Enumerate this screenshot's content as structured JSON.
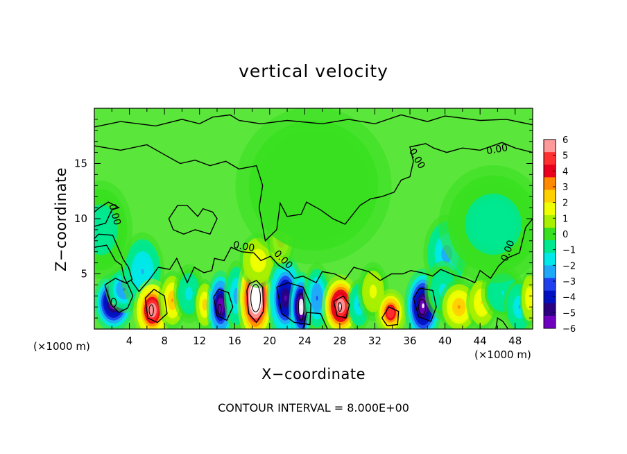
{
  "chart_data": {
    "type": "heatmap",
    "title": "vertical velocity",
    "xlabel": "X−coordinate",
    "ylabel": "Z−coordinate",
    "x_unit_left": "(×1000 m)",
    "x_unit_right": "(×1000 m)",
    "footer": "CONTOUR INTERVAL = 8.000E+00",
    "xlim": [
      0,
      50
    ],
    "ylim": [
      0,
      20
    ],
    "x_ticks": [
      4,
      8,
      12,
      16,
      20,
      24,
      28,
      32,
      36,
      40,
      44,
      48
    ],
    "x_tick_labels": [
      "4",
      "8",
      "12",
      "16",
      "20",
      "24",
      "28",
      "32",
      "36",
      "40",
      "44",
      "48"
    ],
    "y_ticks": [
      5,
      10,
      15
    ],
    "y_tick_labels": [
      "5",
      "10",
      "15"
    ],
    "colorbar": {
      "min": -6,
      "max": 6,
      "ticks": [
        "6",
        "5",
        "4",
        "3",
        "2",
        "1",
        "0",
        "−1",
        "−2",
        "−3",
        "−4",
        "−5",
        "−6"
      ],
      "colors": [
        "#ff9a9a",
        "#ff3030",
        "#e8001c",
        "#ff8a00",
        "#ffd000",
        "#f0ff00",
        "#a8f000",
        "#38e020",
        "#00e890",
        "#00e8e8",
        "#20a8f8",
        "#2040f0",
        "#0010c0",
        "#2a0080",
        "#7000c0"
      ]
    },
    "background_color": "#5ae63a",
    "features": [
      {
        "x": 2.2,
        "z": 2.4,
        "amp": -6.5,
        "sx": 1.3,
        "sz": 1.5
      },
      {
        "x": 3.4,
        "z": 3.6,
        "amp": -3.0,
        "sx": 1.2,
        "sz": 1.2
      },
      {
        "x": 5.5,
        "z": 5.2,
        "amp": -2.2,
        "sx": 1.4,
        "sz": 2.0
      },
      {
        "x": 6.6,
        "z": 1.7,
        "amp": 6.0,
        "sx": 1.2,
        "sz": 1.6
      },
      {
        "x": 8.9,
        "z": 2.6,
        "amp": 3.0,
        "sx": 0.9,
        "sz": 1.5
      },
      {
        "x": 10.8,
        "z": 3.2,
        "amp": -1.5,
        "sx": 1.0,
        "sz": 1.5
      },
      {
        "x": 12.6,
        "z": 2.2,
        "amp": 2.5,
        "sx": 0.7,
        "sz": 1.3
      },
      {
        "x": 14.4,
        "z": 2.1,
        "amp": -6.0,
        "sx": 0.9,
        "sz": 1.8
      },
      {
        "x": 16.2,
        "z": 3.0,
        "amp": -2.5,
        "sx": 0.8,
        "sz": 1.8
      },
      {
        "x": 18.4,
        "z": 2.8,
        "amp": 8.0,
        "sx": 1.2,
        "sz": 2.4
      },
      {
        "x": 18.7,
        "z": 6.2,
        "amp": 1.8,
        "sx": 1.2,
        "sz": 1.4
      },
      {
        "x": 21.8,
        "z": 2.8,
        "amp": -5.5,
        "sx": 1.2,
        "sz": 2.2
      },
      {
        "x": 23.6,
        "z": 2.0,
        "amp": -7.0,
        "sx": 0.8,
        "sz": 1.8
      },
      {
        "x": 21.3,
        "z": 8.3,
        "amp": 3.0,
        "sx": 0.9,
        "sz": 1.6
      },
      {
        "x": 25.4,
        "z": 2.8,
        "amp": -3.0,
        "sx": 0.9,
        "sz": 1.8
      },
      {
        "x": 28.1,
        "z": 2.1,
        "amp": 6.5,
        "sx": 1.2,
        "sz": 1.6
      },
      {
        "x": 30.2,
        "z": 2.2,
        "amp": -2.0,
        "sx": 0.8,
        "sz": 1.3
      },
      {
        "x": 31.8,
        "z": 3.4,
        "amp": 1.5,
        "sx": 1.0,
        "sz": 1.5
      },
      {
        "x": 33.8,
        "z": 1.5,
        "amp": 5.0,
        "sx": 1.0,
        "sz": 1.2
      },
      {
        "x": 37.5,
        "z": 2.1,
        "amp": -6.5,
        "sx": 1.2,
        "sz": 1.9
      },
      {
        "x": 40.2,
        "z": 6.8,
        "amp": -2.5,
        "sx": 1.5,
        "sz": 2.0
      },
      {
        "x": 39.8,
        "z": 3.5,
        "amp": -1.5,
        "sx": 1.2,
        "sz": 1.5
      },
      {
        "x": 41.6,
        "z": 2.0,
        "amp": 3.0,
        "sx": 1.3,
        "sz": 1.4
      },
      {
        "x": 44.2,
        "z": 2.4,
        "amp": 2.2,
        "sx": 1.0,
        "sz": 1.4
      },
      {
        "x": 46.6,
        "z": 3.3,
        "amp": -1.2,
        "sx": 1.4,
        "sz": 1.4
      },
      {
        "x": 48.5,
        "z": 2.0,
        "amp": -2.0,
        "sx": 1.0,
        "sz": 1.4
      },
      {
        "x": 49.6,
        "z": 2.8,
        "amp": 2.0,
        "sx": 0.6,
        "sz": 1.4
      },
      {
        "x": 45.5,
        "z": 9.5,
        "amp": -0.8,
        "sx": 3.5,
        "sz": 3.0
      },
      {
        "x": 0.8,
        "z": 9.0,
        "amp": -0.8,
        "sx": 2.0,
        "sz": 2.5
      },
      {
        "x": 25.0,
        "z": 13.0,
        "amp": 0.3,
        "sx": 5.0,
        "sz": 4.0
      }
    ],
    "contour_labels": [
      {
        "text": "0.00",
        "x": 46.0,
        "z": 16.0,
        "rotate": -10
      },
      {
        "text": "0.00",
        "x": 36.5,
        "z": 15.3,
        "rotate": 60
      },
      {
        "text": "0.00",
        "x": 2.0,
        "z": 10.3,
        "rotate": 75
      },
      {
        "text": "0.00",
        "x": 17.0,
        "z": 7.2,
        "rotate": 10
      },
      {
        "text": "0.00",
        "x": 21.3,
        "z": 6.1,
        "rotate": 45
      },
      {
        "text": "0.00",
        "x": 47.5,
        "z": 7.0,
        "rotate": -70
      }
    ]
  }
}
